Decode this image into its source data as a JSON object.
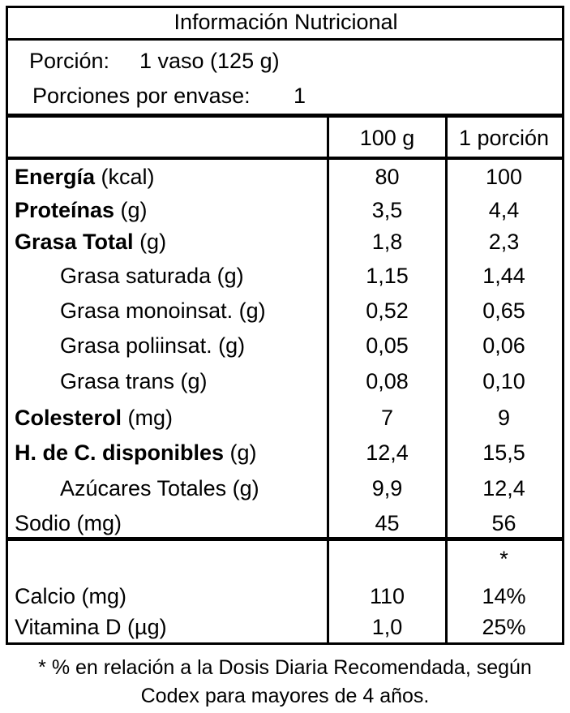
{
  "title": "Información Nutricional",
  "serving": {
    "label": "Porción:",
    "value": "1 vaso (125 g)",
    "per_container_label": "Porciones por envase:",
    "per_container_value": "1"
  },
  "columns": {
    "c1": "100 g",
    "c2": "1 porción"
  },
  "rows": [
    {
      "name": "Energía",
      "unit": " (kcal)",
      "v1": "80",
      "v2": "100"
    },
    {
      "name": "Proteínas",
      "unit": " (g)",
      "v1": "3,5",
      "v2": "4,4"
    },
    {
      "name": "Grasa Total",
      "unit": " (g)",
      "v1": "1,8",
      "v2": "2,3"
    },
    {
      "label": "Grasa saturada (g)",
      "v1": "1,15",
      "v2": "1,44"
    },
    {
      "label": "Grasa monoinsat. (g)",
      "v1": "0,52",
      "v2": "0,65"
    },
    {
      "label": "Grasa poliinsat. (g)",
      "v1": "0,05",
      "v2": "0,06"
    },
    {
      "label": "Grasa trans (g)",
      "v1": "0,08",
      "v2": "0,10"
    },
    {
      "name": "Colesterol",
      "unit": " (mg)",
      "v1": "7",
      "v2": "9"
    },
    {
      "name": "H. de C. disponibles",
      "unit": " (g)",
      "v1": "12,4",
      "v2": "15,5"
    },
    {
      "label": "Azúcares Totales (g)",
      "v1": "9,9",
      "v2": "12,4"
    },
    {
      "label": "Sodio (mg)",
      "v1": "45",
      "v2": "56"
    }
  ],
  "asterisk": "*",
  "micro_rows": [
    {
      "label": "Calcio (mg)",
      "v1": "110",
      "v2": "14%"
    },
    {
      "label": "Vitamina D (µg)",
      "v1": "1,0",
      "v2": "25%"
    }
  ],
  "footnote": {
    "line1": "* % en relación a la Dosis Diaria Recomendada, según",
    "line2": "Codex para mayores de 4 años."
  }
}
